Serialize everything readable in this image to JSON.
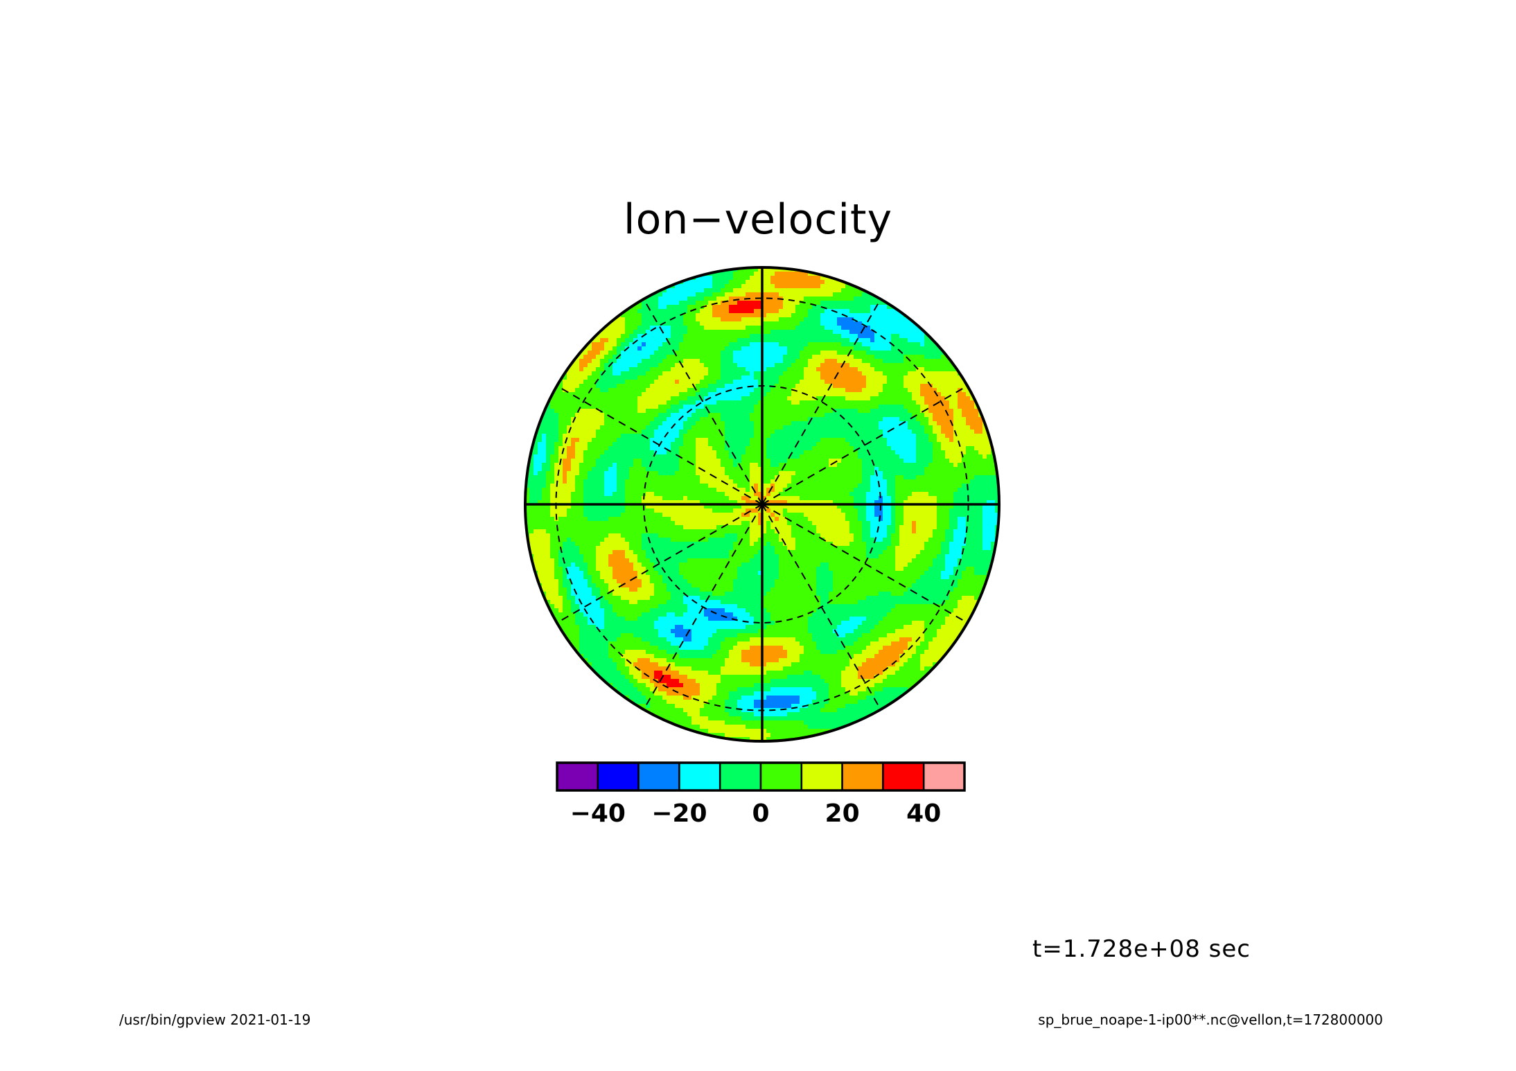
{
  "title": "lon−velocity",
  "time_label": "t=1.728e+08 sec",
  "footer": {
    "left": "/usr/bin/gpview   2021-01-19",
    "right": "sp_brue_noape-1-ip00**.nc@vellon,t=172800000"
  },
  "chart_data": {
    "type": "heatmap",
    "title": "lon−velocity",
    "projection": "polar stereographic",
    "grid": true,
    "colorbar": {
      "placement": "bottom",
      "levels": [
        -50,
        -40,
        -30,
        -20,
        -10,
        0,
        10,
        20,
        30,
        40,
        50
      ],
      "colors": [
        "#7b00b4",
        "#0000ff",
        "#0080ff",
        "#00ffff",
        "#00ff60",
        "#40ff00",
        "#d8ff00",
        "#ff9900",
        "#ff0000",
        "#ffa0a0"
      ],
      "tick_values": [
        -40,
        -20,
        0,
        20,
        40
      ],
      "tick_labels": [
        "−40",
        "−20",
        "0",
        "20",
        "40"
      ]
    }
  }
}
